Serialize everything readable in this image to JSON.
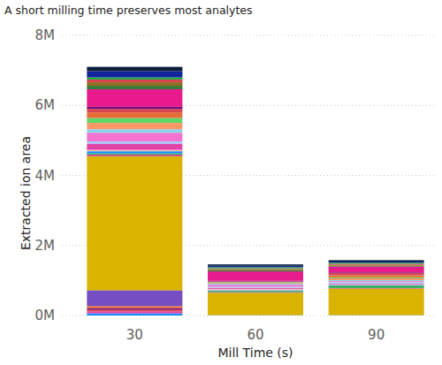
{
  "chart_data": {
    "type": "bar",
    "title": "A short milling time preserves most analytes",
    "x_label": "Mill Time (s)",
    "y_label": "Extracted ion area",
    "categories": [
      "30",
      "60",
      "90"
    ],
    "stacked": true,
    "grid": true,
    "ylim": [
      0,
      8000000
    ],
    "yticks": [
      {
        "value": 0,
        "label": "0M"
      },
      {
        "value": 2000000,
        "label": "2M"
      },
      {
        "value": 4000000,
        "label": "4M"
      },
      {
        "value": 6000000,
        "label": "6M"
      },
      {
        "value": 8000000,
        "label": "8M"
      }
    ],
    "series": [
      {
        "color": "#118DFF",
        "values": [
          60000,
          10000,
          10000
        ]
      },
      {
        "color": "#E044A7",
        "values": [
          60000,
          0,
          0
        ]
      },
      {
        "color": "#D64550",
        "values": [
          50000,
          0,
          0
        ]
      },
      {
        "color": "#6B007B",
        "values": [
          40000,
          0,
          0
        ]
      },
      {
        "color": "#E66C37",
        "values": [
          60000,
          0,
          0
        ]
      },
      {
        "color": "#744EC2",
        "values": [
          450000,
          0,
          0
        ]
      },
      {
        "color": "#D9B300",
        "values": [
          3830000,
          640000,
          760000
        ]
      },
      {
        "color": "#C83D95",
        "values": [
          50000,
          20000,
          20000
        ]
      },
      {
        "color": "#1AAB40",
        "values": [
          30000,
          30000,
          60000
        ]
      },
      {
        "color": "#118DFF",
        "values": [
          60000,
          20000,
          20000
        ]
      },
      {
        "color": "#F5C4AF",
        "values": [
          40000,
          40000,
          20000
        ]
      },
      {
        "color": "#E044A7",
        "values": [
          180000,
          30000,
          20000
        ]
      },
      {
        "color": "#A0D1FF",
        "values": [
          60000,
          30000,
          40000
        ]
      },
      {
        "color": "#F472D0",
        "values": [
          250000,
          60000,
          30000
        ]
      },
      {
        "color": "#8AD4EB",
        "values": [
          100000,
          30000,
          30000
        ]
      },
      {
        "color": "#FE9666",
        "values": [
          180000,
          20000,
          50000
        ]
      },
      {
        "color": "#5BD667",
        "values": [
          140000,
          20000,
          30000
        ]
      },
      {
        "color": "#E66C37",
        "values": [
          160000,
          20000,
          60000
        ]
      },
      {
        "color": "#D64550",
        "values": [
          100000,
          0,
          60000
        ]
      },
      {
        "color": "#750985",
        "values": [
          60000,
          20000,
          20000
        ]
      },
      {
        "color": "#E81B8C",
        "values": [
          500000,
          270000,
          170000
        ]
      },
      {
        "color": "#3A7A3A",
        "values": [
          100000,
          40000,
          20000
        ]
      },
      {
        "color": "#8D6E1F",
        "values": [
          100000,
          30000,
          30000
        ]
      },
      {
        "color": "#D64550",
        "values": [
          80000,
          20000,
          30000
        ]
      },
      {
        "color": "#1AAB40",
        "values": [
          60000,
          30000,
          30000
        ]
      },
      {
        "color": "#12239E",
        "values": [
          180000,
          40000,
          30000
        ]
      },
      {
        "color": "#0B1E3D",
        "values": [
          120000,
          40000,
          40000
        ]
      }
    ]
  }
}
